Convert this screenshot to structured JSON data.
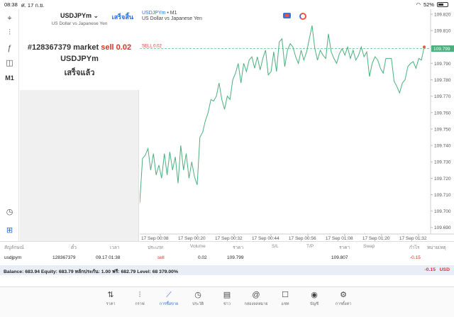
{
  "status_bar": {
    "time": "08:38",
    "date": "ศ. 17 ก.ย.",
    "battery": "52%"
  },
  "toolbar": {
    "items": [
      {
        "name": "crosshair-icon",
        "glyph": "⌖"
      },
      {
        "name": "indicators-icon",
        "glyph": "⫶"
      },
      {
        "name": "function-icon",
        "glyph": "ƒ"
      },
      {
        "name": "objects-icon",
        "glyph": "◫"
      },
      {
        "name": "timeframe-button",
        "glyph": "M1"
      },
      {
        "name": "trade-history-icon",
        "glyph": "◷"
      },
      {
        "name": "add-order-icon",
        "glyph": "⊞"
      }
    ]
  },
  "order_panel": {
    "symbol": "USDJPYm",
    "done_label": "เสร็จสิ้น",
    "description": "US Dollar vs Japanese Yen",
    "order_line_prefix": "#128367379 market ",
    "order_line_sell": "sell 0.02",
    "order_symbol": "USDJPYm",
    "status": "เสร็จแล้ว"
  },
  "chart": {
    "title_symbol": "USDJPYm",
    "title_timeframe": " • M1",
    "subtitle": "US Dollar vs Japanese Yen",
    "sell_label": "SELL 0.02",
    "current_price": "109.799",
    "colors": {
      "line": "#4caf7d",
      "sell_line": "#5fb98a",
      "price_tag": "#4caf7d",
      "sell_text": "#d8342b"
    }
  },
  "chart_data": {
    "type": "line",
    "y_ticks": [
      "109.820",
      "109.810",
      "109.800",
      "109.790",
      "109.780",
      "109.770",
      "109.760",
      "109.750",
      "109.740",
      "109.730",
      "109.720",
      "109.710",
      "109.700",
      "109.690"
    ],
    "x_ticks": [
      "17 Sep 00:08",
      "17 Sep 00:20",
      "17 Sep 00:32",
      "17 Sep 00:44",
      "17 Sep 00:56",
      "17 Sep 01:08",
      "17 Sep 01:20",
      "17 Sep 01:32"
    ],
    "ylim": [
      109.686,
      109.823
    ],
    "sell_level": 109.799,
    "series": [
      {
        "values": [
          109.705,
          109.732,
          109.734,
          109.738,
          109.725,
          109.735,
          109.722,
          109.728,
          109.72,
          109.735,
          109.722,
          109.736,
          109.725,
          109.733,
          109.717,
          109.74,
          109.725,
          109.735,
          109.72,
          109.73,
          109.721,
          109.716,
          109.745,
          109.748,
          109.755,
          109.76,
          109.768,
          109.767,
          109.77,
          109.778,
          109.768,
          109.762,
          109.77,
          109.768,
          109.78,
          109.784,
          109.79,
          109.778,
          109.79,
          109.785,
          109.792,
          109.794,
          109.787,
          109.794,
          109.786,
          109.793,
          109.798,
          109.783,
          109.785,
          109.797,
          109.785,
          109.803,
          109.805,
          109.788,
          109.798,
          109.802,
          109.8,
          109.794,
          109.79,
          109.798,
          109.792,
          109.797,
          109.805,
          109.813,
          109.799,
          109.792,
          109.798,
          109.795,
          109.793,
          109.808,
          109.797,
          109.793,
          109.79,
          109.796,
          109.799,
          109.795,
          109.8,
          109.793,
          109.798,
          109.792,
          109.795,
          109.8,
          109.794,
          109.797,
          109.782,
          109.79,
          109.794,
          109.792,
          109.787,
          109.784,
          109.793,
          109.793,
          109.793,
          109.779,
          109.776,
          109.772,
          109.778,
          109.78,
          109.788,
          109.79,
          109.791,
          109.787,
          109.793,
          109.792,
          109.8
        ]
      }
    ]
  },
  "trades": {
    "headers": [
      "สัญลักษณ์",
      "ตั๋ว",
      "เวลา",
      "ประเภท",
      "Volume",
      "ราคา",
      "S/L",
      "T/P",
      "ราคา",
      "Swap",
      "กำไร",
      "หมายเหตุ"
    ],
    "row": {
      "symbol": "usdjpym",
      "ticket": "128367379",
      "time": "09.17 01:38",
      "type": "sell",
      "volume": "0.02",
      "price": "109.799",
      "sl": "",
      "tp": "",
      "current": "109.807",
      "swap": "",
      "profit": "-0.15"
    },
    "balance_text": "Balance: 683.94 Equity: 683.79 หลักประกัน: 1.00 ฟรี: 682.79 Level: 68 379.00%",
    "balance_profit": "-0.15",
    "balance_currency": "USD"
  },
  "bottom_nav": {
    "items": [
      {
        "name": "nav-quotes",
        "icon": "⇅",
        "label": "ราคา",
        "active": false
      },
      {
        "name": "nav-chart",
        "icon": "⫶",
        "label": "กราฟ",
        "active": false
      },
      {
        "name": "nav-trade",
        "icon": "📈",
        "label": "การซื้อขาย",
        "active": true
      },
      {
        "name": "nav-history",
        "icon": "◷",
        "label": "ประวัติ",
        "active": false
      },
      {
        "name": "nav-news",
        "icon": "▤",
        "label": "ข่าว",
        "active": false
      },
      {
        "name": "nav-mailbox",
        "icon": "@",
        "label": "กล่องจดหมาย",
        "active": false
      },
      {
        "name": "nav-chat",
        "icon": "☐",
        "label": "แชท",
        "active": false
      },
      {
        "name": "nav-account",
        "icon": "◉",
        "label": "บัญชี",
        "active": false
      },
      {
        "name": "nav-settings",
        "icon": "⚙",
        "label": "การตั้งค่า",
        "active": false
      }
    ]
  }
}
